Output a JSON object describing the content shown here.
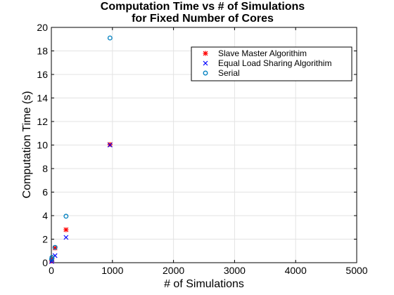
{
  "chart_data": {
    "type": "scatter",
    "title_line1": "Computation Time vs # of Simulations",
    "title_line2": "for Fixed Number of Cores",
    "xlabel": "# of Simulations",
    "ylabel": "Computation Time (s)",
    "xlim": [
      0,
      5000
    ],
    "ylim": [
      0,
      20
    ],
    "xticks": [
      0,
      1000,
      2000,
      3000,
      4000,
      5000
    ],
    "yticks": [
      0,
      2,
      4,
      6,
      8,
      10,
      12,
      14,
      16,
      18,
      20
    ],
    "grid": true,
    "legend_position": "top-right",
    "series": [
      {
        "name": "Slave Master Algorithim",
        "marker": "asterisk",
        "color": "#ff0000",
        "x": [
          5,
          10,
          60,
          240,
          960
        ],
        "y": [
          0.15,
          0.35,
          1.25,
          2.8,
          10.05
        ]
      },
      {
        "name": "Equal Load Sharing Algorithim",
        "marker": "x",
        "color": "#0000ff",
        "x": [
          5,
          10,
          60,
          240,
          960
        ],
        "y": [
          0.1,
          0.25,
          0.6,
          2.15,
          10.0
        ]
      },
      {
        "name": "Serial",
        "marker": "circle",
        "color": "#0080c0",
        "x": [
          5,
          10,
          60,
          240,
          960
        ],
        "y": [
          0.3,
          0.45,
          1.3,
          3.95,
          19.1
        ]
      }
    ]
  }
}
